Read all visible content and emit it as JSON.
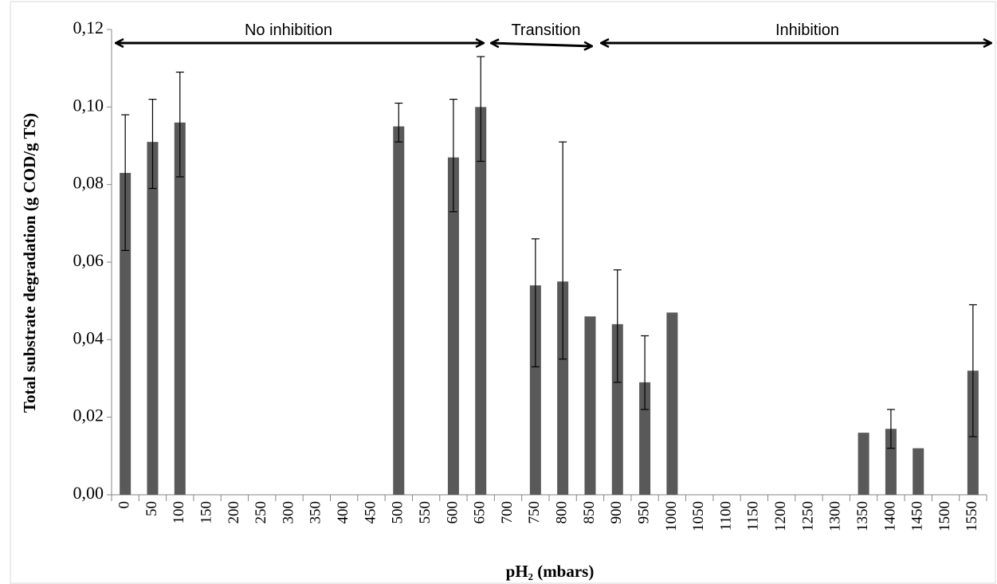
{
  "chart_data": {
    "type": "bar",
    "x_label": "pH₂ (mbars)",
    "y_label": "Total substrate degradation (g COD/g TS)",
    "annotations": [
      "No inhibition",
      "Transition",
      "Inhibition"
    ],
    "categories": [
      "0",
      "50",
      "100",
      "150",
      "200",
      "250",
      "300",
      "350",
      "400",
      "450",
      "500",
      "550",
      "600",
      "650",
      "700",
      "750",
      "800",
      "850",
      "900",
      "950",
      "1000",
      "1050",
      "1100",
      "1150",
      "1200",
      "1250",
      "1300",
      "1350",
      "1400",
      "1450",
      "1500",
      "1550"
    ],
    "values": [
      0.083,
      0.091,
      0.096,
      null,
      null,
      null,
      null,
      null,
      null,
      null,
      0.095,
      null,
      0.087,
      0.1,
      null,
      0.054,
      0.055,
      0.046,
      0.044,
      0.029,
      0.047,
      null,
      null,
      null,
      null,
      null,
      null,
      0.016,
      0.017,
      0.012,
      null,
      0.032
    ],
    "error_plus": [
      0.015,
      0.011,
      0.013,
      null,
      null,
      null,
      null,
      null,
      null,
      null,
      0.006,
      null,
      0.015,
      0.013,
      null,
      0.012,
      0.036,
      null,
      0.014,
      0.012,
      null,
      null,
      null,
      null,
      null,
      null,
      null,
      null,
      0.005,
      null,
      null,
      0.017
    ],
    "error_minus": [
      0.02,
      0.012,
      0.014,
      null,
      null,
      null,
      null,
      null,
      null,
      null,
      0.004,
      null,
      0.014,
      0.014,
      null,
      0.021,
      0.02,
      null,
      0.015,
      0.007,
      null,
      null,
      null,
      null,
      null,
      null,
      null,
      null,
      0.005,
      null,
      null,
      0.017
    ],
    "color": "#595959",
    "ylim": [
      0,
      0.12
    ],
    "yticks": [
      {
        "value": 0,
        "label": "0,00"
      },
      {
        "value": 0.02,
        "label": "0,02"
      },
      {
        "value": 0.04,
        "label": "0,04"
      },
      {
        "value": 0.06,
        "label": "0,06"
      },
      {
        "value": 0.08,
        "label": "0,08"
      },
      {
        "value": 0.1,
        "label": "0,10"
      },
      {
        "value": 0.12,
        "label": "0,12"
      }
    ]
  }
}
